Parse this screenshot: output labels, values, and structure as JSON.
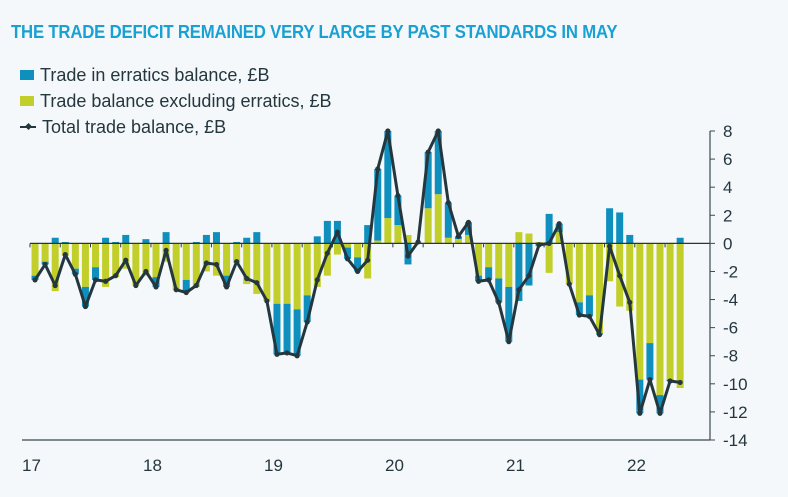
{
  "chart_data": {
    "type": "bar",
    "title": "THE TRADE DEFICIT REMAINED VERY LARGE BY PAST STANDARDS IN MAY",
    "xlabel": "",
    "ylabel": "",
    "ylim": [
      -14,
      8
    ],
    "yticks": [
      "8",
      "6",
      "4",
      "2",
      "0",
      "-2",
      "-4",
      "-6",
      "-8",
      "-10",
      "-12",
      "-14"
    ],
    "ytick_values": [
      8,
      6,
      4,
      2,
      0,
      -2,
      -4,
      -6,
      -8,
      -10,
      -12,
      -14
    ],
    "xticks": [
      "17",
      "18",
      "19",
      "20",
      "21",
      "22"
    ],
    "grid": false,
    "yaxis_position": "right",
    "legend_position": "top-left",
    "stacked": true,
    "period_start": "Jan 2017",
    "period_end": "May 2022",
    "frequency": "monthly",
    "series": [
      {
        "name": "Trade in erratics balance, £B",
        "kind": "bar",
        "color": "#0f8fbd",
        "values": [
          -0.3,
          -0.2,
          0.4,
          0.1,
          -0.4,
          -1.4,
          -0.9,
          0.4,
          0.1,
          0.6,
          0.0,
          0.3,
          -0.7,
          0.8,
          0.0,
          -0.9,
          0.1,
          0.6,
          0.8,
          -0.8,
          0.1,
          0.4,
          0.8,
          0.0,
          -3.6,
          -3.5,
          -3.3,
          -1.9,
          0.5,
          1.6,
          1.6,
          -0.8,
          -1.0,
          1.3,
          5.1,
          6.2,
          2.1,
          -1.5,
          0.0,
          4.0,
          4.5,
          2.5,
          0.2,
          0.9,
          -0.4,
          -0.9,
          -1.7,
          -3.9,
          -4.1,
          -3.0,
          -0.2,
          2.1,
          0.6,
          0.0,
          -0.9,
          -1.5,
          -0.1,
          2.5,
          2.2,
          0.6,
          -2.4,
          -2.6,
          -1.3,
          -0.1,
          0.4
        ]
      },
      {
        "name": "Trade balance excluding erratics, £B",
        "kind": "bar",
        "color": "#c2cf2a",
        "values": [
          -2.3,
          -1.3,
          -3.4,
          -0.9,
          -1.8,
          -3.1,
          -1.7,
          -3.1,
          -2.4,
          -1.8,
          -3.0,
          -2.3,
          -2.4,
          -1.3,
          -3.3,
          -2.6,
          -3.1,
          -2.0,
          -2.3,
          -2.3,
          -1.4,
          -2.9,
          -3.6,
          -4.1,
          -4.3,
          -4.3,
          -4.7,
          -3.7,
          -3.1,
          -2.3,
          -0.8,
          -0.3,
          -1.0,
          -2.5,
          0.2,
          1.8,
          1.3,
          0.6,
          0.1,
          2.5,
          3.5,
          0.4,
          0.3,
          0.6,
          -2.3,
          -1.7,
          -2.5,
          -3.1,
          0.8,
          0.7,
          0.1,
          -2.1,
          0.8,
          -2.9,
          -4.2,
          -3.7,
          -6.4,
          -2.7,
          -4.5,
          -4.8,
          -9.7,
          -7.1,
          -10.8,
          -9.7,
          -10.3
        ]
      },
      {
        "name": "Total trade balance, £B",
        "kind": "line",
        "color": "#24373f",
        "values": [
          -2.6,
          -1.5,
          -3.0,
          -0.8,
          -2.2,
          -4.5,
          -2.6,
          -2.7,
          -2.3,
          -1.2,
          -3.0,
          -2.0,
          -3.1,
          -0.5,
          -3.3,
          -3.5,
          -3.0,
          -1.4,
          -1.5,
          -3.1,
          -1.3,
          -2.5,
          -2.8,
          -4.1,
          -7.9,
          -7.8,
          -8.0,
          -5.6,
          -2.6,
          -0.7,
          0.8,
          -1.1,
          -2.0,
          -1.2,
          5.3,
          8.0,
          3.4,
          -0.9,
          0.1,
          6.5,
          8.0,
          2.9,
          0.5,
          1.5,
          -2.7,
          -2.6,
          -4.2,
          -7.0,
          -3.3,
          -2.3,
          -0.1,
          0.0,
          1.4,
          -2.9,
          -5.1,
          -5.2,
          -6.5,
          -0.2,
          -2.3,
          -4.2,
          -12.1,
          -9.7,
          -12.1,
          -9.8,
          -9.9
        ]
      }
    ]
  },
  "legend": {
    "erratics": "Trade in erratics balance, £B",
    "excluding": "Trade balance excluding erratics, £B",
    "total": "Total trade balance, £B"
  }
}
